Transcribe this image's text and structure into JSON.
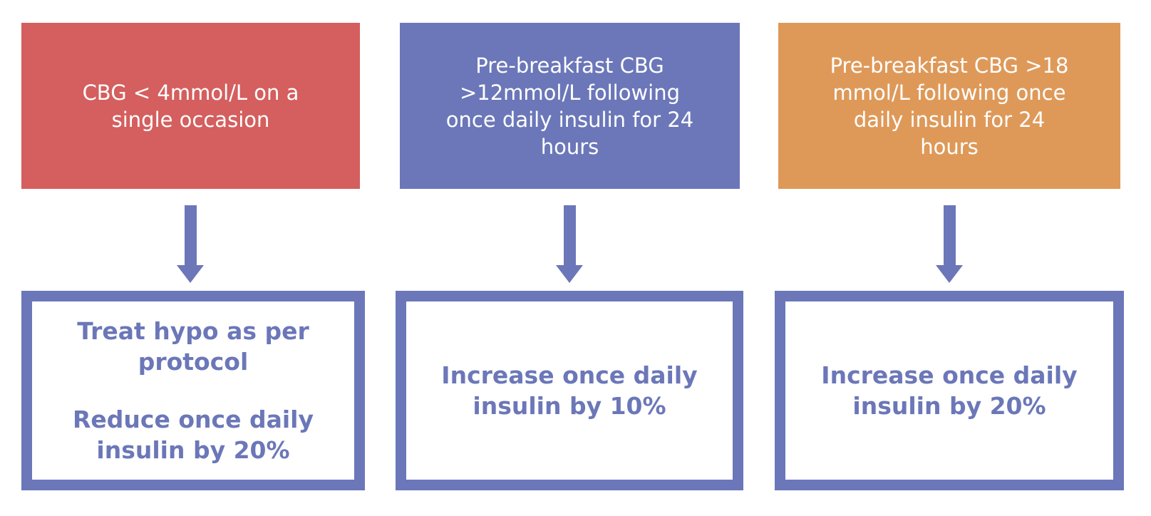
{
  "colors": {
    "red": "#D45F5E",
    "periwinkle": "#6B77B8",
    "orange": "#DE9959",
    "white": "#FFFFFF"
  },
  "flowchart": {
    "columns": [
      {
        "id": "hypoglycaemia",
        "condition_lines": [
          "CBG < 4mmol/L on a",
          "single occasion"
        ],
        "action_paragraphs": [
          {
            "lines": [
              "Treat hypo as per",
              "protocol"
            ]
          },
          {
            "lines": [
              "Reduce once daily",
              "insulin by 20%"
            ]
          }
        ]
      },
      {
        "id": "cbg-over-12",
        "condition_lines": [
          "Pre-breakfast CBG",
          ">12mmol/L following",
          "once daily insulin for 24",
          "hours"
        ],
        "action_paragraphs": [
          {
            "lines": [
              "Increase once daily",
              "insulin by 10%"
            ]
          }
        ]
      },
      {
        "id": "cbg-over-18",
        "condition_lines": [
          "Pre-breakfast CBG >18",
          "mmol/L following once",
          "daily insulin for 24",
          "hours"
        ],
        "action_paragraphs": [
          {
            "lines": [
              "Increase once daily",
              "insulin by 20%"
            ]
          }
        ]
      }
    ]
  }
}
